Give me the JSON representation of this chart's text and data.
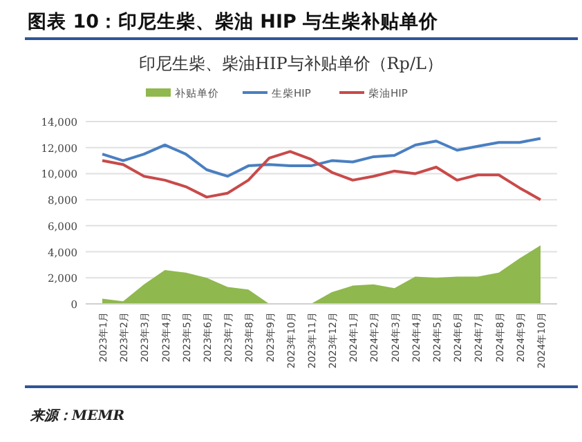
{
  "chart_data": {
    "type": "line",
    "title": "图表 10：印尼生柴、柴油 HIP 与生柴补贴单价",
    "subtitle": "印尼生柴、柴油HIP与补贴单价（Rp/L）",
    "categories": [
      "2023年1月",
      "2023年2月",
      "2023年3月",
      "2023年4月",
      "2023年5月",
      "2023年6月",
      "2023年7月",
      "2023年8月",
      "2023年9月",
      "2023年10月",
      "2023年11月",
      "2023年12月",
      "2024年1月",
      "2024年2月",
      "2024年3月",
      "2024年4月",
      "2024年5月",
      "2024年6月",
      "2024年7月",
      "2024年8月",
      "2024年9月",
      "2024年10月"
    ],
    "series": [
      {
        "name": "补贴单价",
        "type": "area",
        "color": "#8fb84e",
        "values": [
          400,
          200,
          1500,
          2600,
          2400,
          2000,
          1300,
          1100,
          0,
          0,
          0,
          900,
          1400,
          1500,
          1200,
          2100,
          2000,
          2100,
          2100,
          2400,
          3500,
          4500
        ]
      },
      {
        "name": "生柴HIP",
        "type": "line",
        "color": "#4a7fc1",
        "values": [
          11500,
          11000,
          11500,
          12200,
          11500,
          10300,
          9800,
          10600,
          10700,
          10600,
          10600,
          11000,
          10900,
          11300,
          11400,
          12200,
          12500,
          11800,
          12100,
          12400,
          12400,
          12700
        ]
      },
      {
        "name": "柴油HIP",
        "type": "line",
        "color": "#c84a4a",
        "values": [
          11000,
          10700,
          9800,
          9500,
          9000,
          8200,
          8500,
          9500,
          11200,
          11700,
          11100,
          10100,
          9500,
          9800,
          10200,
          10000,
          10500,
          9500,
          9900,
          9900,
          8900,
          8000
        ]
      }
    ],
    "ylim": [
      0,
      14000
    ],
    "yticks": [
      {
        "value": 0,
        "label": "0"
      },
      {
        "value": 2000,
        "label": "2,000"
      },
      {
        "value": 4000,
        "label": "4,000"
      },
      {
        "value": 6000,
        "label": "6,000"
      },
      {
        "value": 8000,
        "label": "8,000"
      },
      {
        "value": 10000,
        "label": "10,000"
      },
      {
        "value": 12000,
        "label": "12,000"
      },
      {
        "value": 14000,
        "label": "14,000"
      }
    ],
    "grid": "y",
    "legend": "top",
    "line_style": "solid",
    "marker": "none",
    "annotations": [
      "来源：MEMR"
    ]
  }
}
